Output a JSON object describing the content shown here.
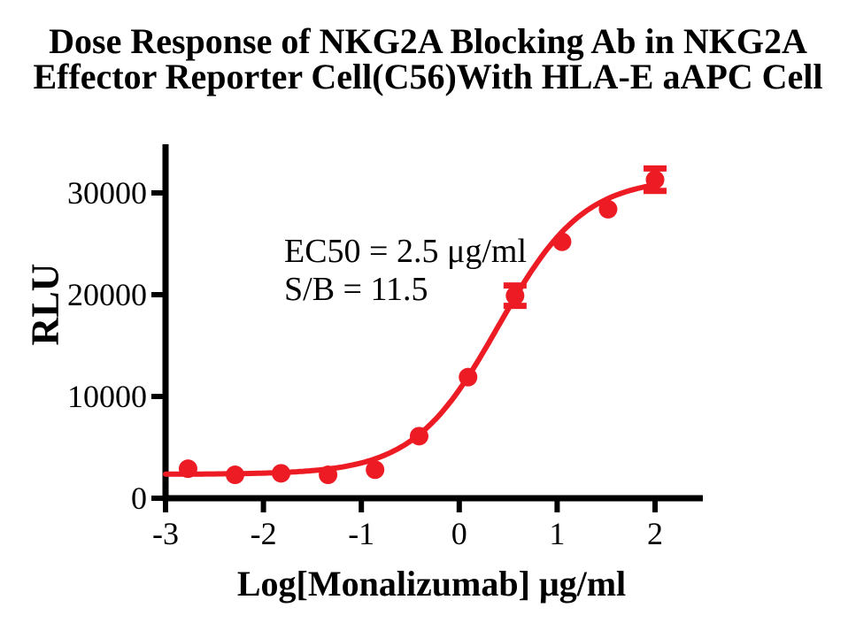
{
  "title": {
    "line1": "Dose Response of NKG2A Blocking Ab in NKG2A",
    "line2": "Effector Reporter Cell(C56)With HLA-E aAPC Cell"
  },
  "chart_data": {
    "type": "scatter",
    "title": "Dose Response of NKG2A Blocking Ab in NKG2A Effector Reporter Cell(C56)With HLA-E aAPC Cell",
    "xlabel": "Log[Monalizumab] μg/ml",
    "ylabel": "RLU",
    "annotations": [
      "EC50 = 2.5 μg/ml",
      "S/B = 11.5"
    ],
    "ec50_ugml": 2.5,
    "signal_to_background": 11.5,
    "x_ticks": [
      -3,
      -2,
      -1,
      0,
      1,
      2
    ],
    "y_ticks": [
      0,
      10000,
      20000,
      30000
    ],
    "xlim": [
      -3,
      2.49
    ],
    "ylim": [
      0,
      35000
    ],
    "grid": false,
    "legend_position": "none",
    "accent_color": "#ed1c24",
    "axis_color": "#000000",
    "series": [
      {
        "name": "Monalizumab dose response",
        "marker": "circle",
        "marker_color": "#ed1c24",
        "points": [
          {
            "x": -2.77,
            "y": 2900
          },
          {
            "x": -2.29,
            "y": 2300
          },
          {
            "x": -1.82,
            "y": 2450
          },
          {
            "x": -1.34,
            "y": 2300
          },
          {
            "x": -0.86,
            "y": 2800
          },
          {
            "x": -0.41,
            "y": 6100
          },
          {
            "x": 0.09,
            "y": 11900
          },
          {
            "x": 0.57,
            "y": 19900,
            "err": 1000
          },
          {
            "x": 1.05,
            "y": 25200
          },
          {
            "x": 1.52,
            "y": 28400
          },
          {
            "x": 2.0,
            "y": 31300,
            "err": 1100
          }
        ]
      }
    ],
    "fit_curve": {
      "model": "4PL",
      "bottom": 2350,
      "top": 31500,
      "logEC50": 0.4,
      "hill": 1.0,
      "x_start": -3,
      "x_end": 2.0
    }
  }
}
